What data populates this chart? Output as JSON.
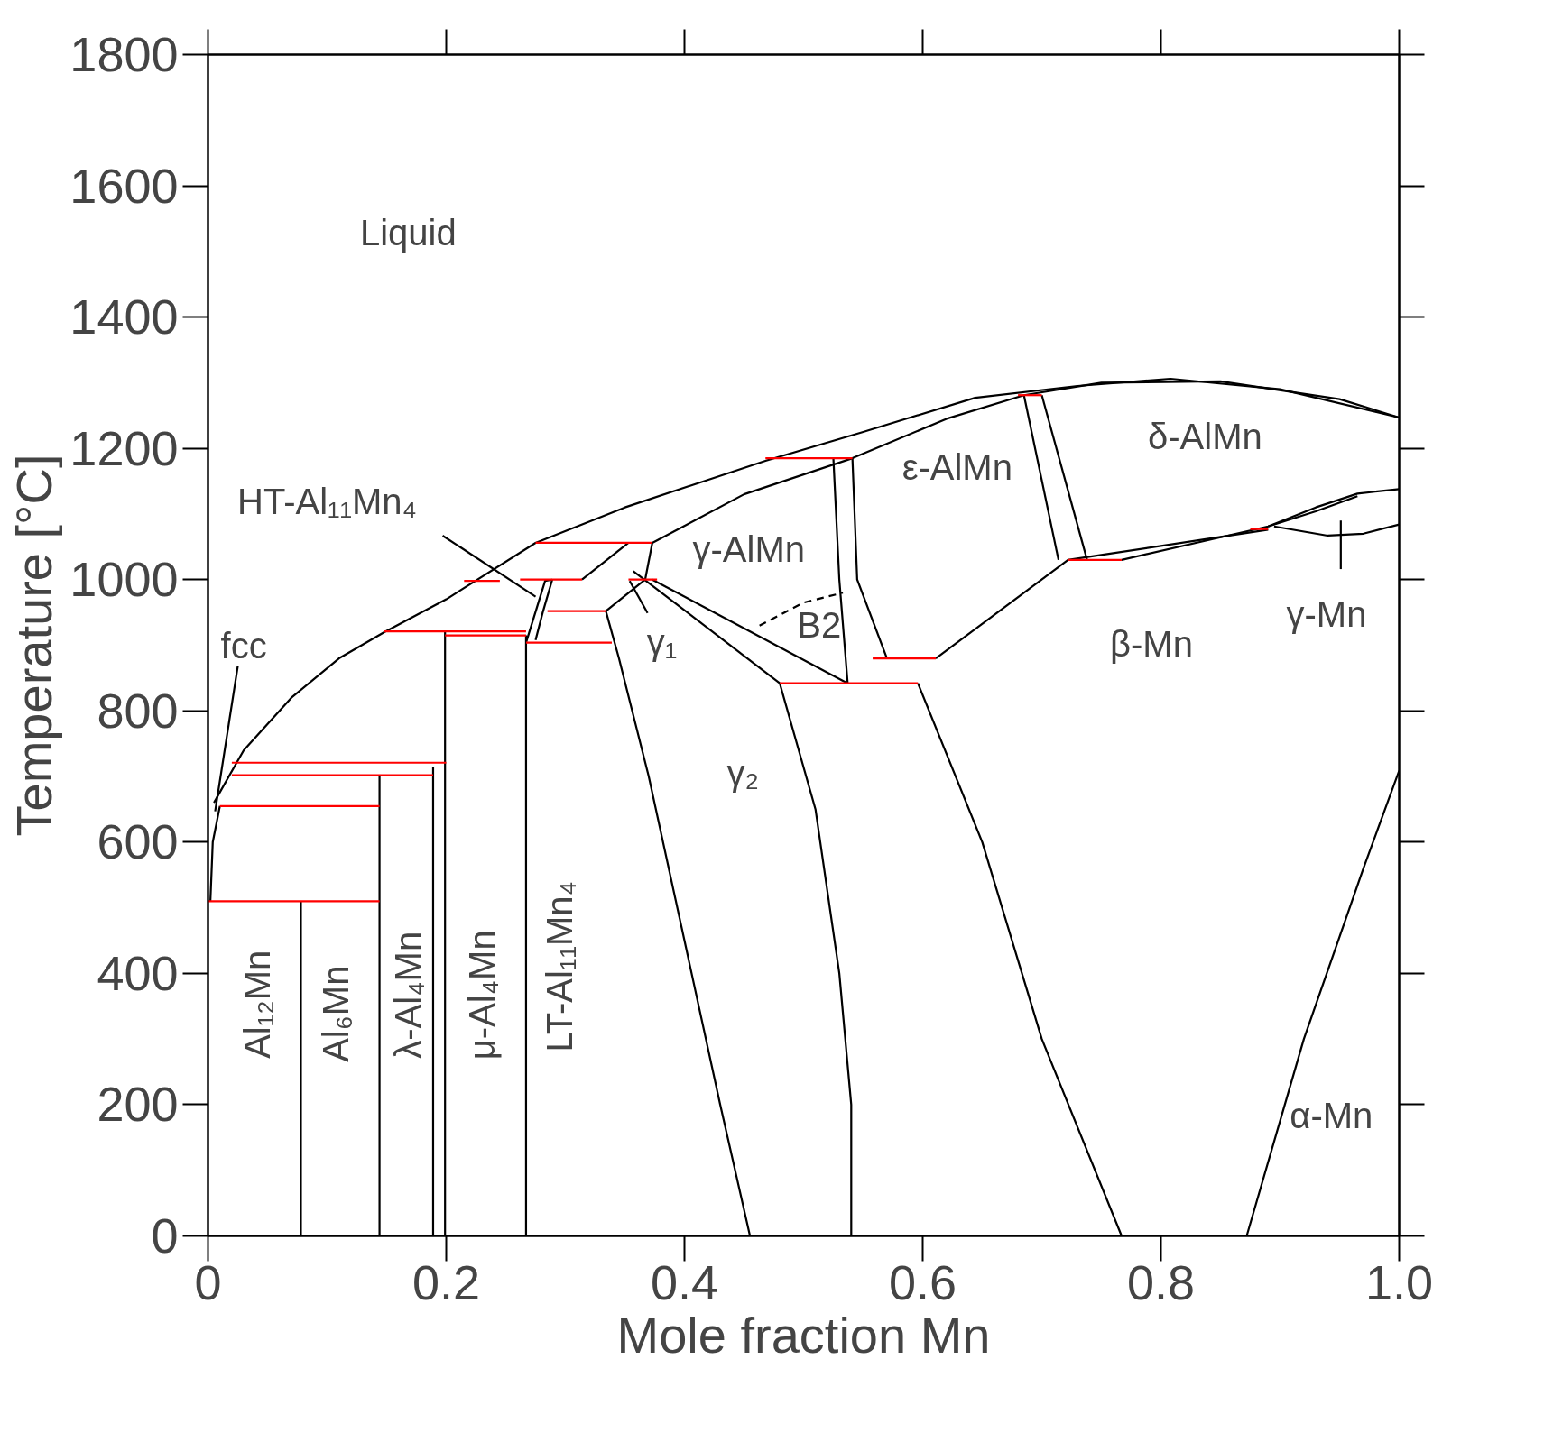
{
  "chart_data": {
    "type": "line",
    "xlabel": "Mole fraction Mn",
    "ylabel": "Temperature [°C]",
    "xlim": [
      0,
      1
    ],
    "ylim": [
      0,
      1800
    ],
    "xticks": [
      0,
      0.2,
      0.4,
      0.6,
      0.8,
      {
        "value": 1,
        "label": "1.0"
      }
    ],
    "yticks": [
      0,
      200,
      400,
      600,
      800,
      1000,
      1200,
      1400,
      1600,
      1800
    ],
    "grid": false,
    "series": [
      {
        "color": "#000000",
        "x": [
          0.005,
          0.03,
          0.07,
          0.11,
          0.148,
          0.2,
          0.275,
          0.35,
          0.468,
          0.55,
          0.644,
          0.73,
          0.808,
          0.9,
          1.0
        ],
        "values": [
          660,
          740,
          820,
          880,
          920,
          970,
          1056,
          1110,
          1181,
          1225,
          1277,
          1295,
          1306,
          1290,
          1247
        ]
      },
      {
        "color": "#000000",
        "x": [
          0.373,
          0.45,
          0.541,
          0.62,
          0.685,
          0.75,
          0.85,
          0.95,
          1.0
        ],
        "values": [
          1056,
          1130,
          1185,
          1245,
          1281,
          1300,
          1302,
          1275,
          1247
        ]
      },
      {
        "color": "#000000",
        "x": [
          0.078,
          0.078
        ],
        "values": [
          0,
          510
        ]
      },
      {
        "color": "#000000",
        "x": [
          0.144,
          0.144
        ],
        "values": [
          0,
          702
        ]
      },
      {
        "color": "#000000",
        "x": [
          0.189,
          0.189
        ],
        "values": [
          0,
          715
        ]
      },
      {
        "color": "#000000",
        "x": [
          0.199,
          0.199
        ],
        "values": [
          0,
          921
        ]
      },
      {
        "color": "#000000",
        "x": [
          0.267,
          0.267
        ],
        "values": [
          0,
          915
        ]
      },
      {
        "color": "#000000",
        "x": [
          0.002,
          0.004,
          0.01
        ],
        "values": [
          510,
          600,
          655
        ]
      },
      {
        "color": "#000000",
        "x": [
          0.267,
          0.283,
          0.289
        ],
        "values": [
          904,
          998,
          1000
        ]
      },
      {
        "color": "#000000",
        "x": [
          0.275,
          0.281,
          0.289
        ],
        "values": [
          908,
          950,
          1000
        ]
      },
      {
        "color": "#000000",
        "x": [
          0.334,
          0.345,
          0.37,
          0.4,
          0.43,
          0.455
        ],
        "values": [
          952,
          880,
          700,
          450,
          200,
          0
        ]
      },
      {
        "color": "#000000",
        "x": [
          0.314,
          0.353
        ],
        "values": [
          1000,
          1056
        ]
      },
      {
        "color": "#000000",
        "x": [
          0.334,
          0.367,
          0.373
        ],
        "values": [
          952,
          1000,
          1056
        ]
      },
      {
        "color": "#000000",
        "x": [
          0.373,
          0.537
        ],
        "values": [
          1000,
          842
        ]
      },
      {
        "color": "#000000",
        "x": [
          0.357,
          0.48
        ],
        "values": [
          1013,
          842
        ]
      },
      {
        "color": "#000000",
        "x": [
          0.48,
          0.51,
          0.53,
          0.54,
          0.54
        ],
        "values": [
          842,
          650,
          400,
          200,
          0
        ]
      },
      {
        "color": "#000000",
        "line_style": "dashed",
        "x": [
          0.463,
          0.5,
          0.533
        ],
        "values": [
          930,
          965,
          980
        ]
      },
      {
        "color": "#000000",
        "x": [
          0.525,
          0.53,
          0.537
        ],
        "values": [
          1185,
          1000,
          842
        ]
      },
      {
        "color": "#000000",
        "x": [
          0.541,
          0.545,
          0.57
        ],
        "values": [
          1185,
          1000,
          880
        ]
      },
      {
        "color": "#000000",
        "x": [
          0.611,
          0.722
        ],
        "values": [
          880,
          1030
        ]
      },
      {
        "color": "#000000",
        "x": [
          0.596,
          0.65,
          0.7,
          0.767
        ],
        "values": [
          842,
          600,
          300,
          0
        ]
      },
      {
        "color": "#000000",
        "x": [
          0.685,
          0.714
        ],
        "values": [
          1281,
          1030
        ]
      },
      {
        "color": "#000000",
        "x": [
          0.7,
          0.738
        ],
        "values": [
          1281,
          1030
        ]
      },
      {
        "color": "#000000",
        "x": [
          0.722,
          0.89
        ],
        "values": [
          1030,
          1076
        ]
      },
      {
        "color": "#000000",
        "x": [
          0.767,
          0.89,
          0.93,
          0.965,
          1.0
        ],
        "values": [
          1030,
          1081,
          1110,
          1131,
          1138
        ]
      },
      {
        "color": "#000000",
        "x": [
          0.89,
          0.93,
          0.965
        ],
        "values": [
          1081,
          1104,
          1127
        ]
      },
      {
        "color": "#000000",
        "x": [
          0.895,
          0.94,
          0.97,
          1.0
        ],
        "values": [
          1081,
          1067,
          1070,
          1084
        ]
      },
      {
        "color": "#000000",
        "x": [
          0.872,
          0.92,
          0.97,
          1.0
        ],
        "values": [
          0,
          300,
          560,
          709
        ]
      },
      {
        "color": "#000000",
        "x": [
          0.197,
          0.275
        ],
        "values": [
          1067,
          974
        ]
      },
      {
        "color": "#000000",
        "x": [
          0.025,
          0.006
        ],
        "values": [
          868,
          647
        ]
      },
      {
        "color": "#000000",
        "x": [
          0.369,
          0.354
        ],
        "values": [
          949,
          998
        ]
      },
      {
        "color": "#000000",
        "x": [
          0.951,
          0.951
        ],
        "values": [
          1016,
          1090
        ]
      },
      {
        "color": "#ff0000",
        "x": [
          0.468,
          0.541
        ],
        "values": [
          1185,
          1185
        ]
      },
      {
        "color": "#ff0000",
        "x": [
          0.68,
          0.7
        ],
        "values": [
          1281,
          1281
        ]
      },
      {
        "color": "#ff0000",
        "x": [
          0.275,
          0.373
        ],
        "values": [
          1056,
          1056
        ]
      },
      {
        "color": "#ff0000",
        "x": [
          0.215,
          0.245
        ],
        "values": [
          998,
          998
        ]
      },
      {
        "color": "#ff0000",
        "x": [
          0.262,
          0.314
        ],
        "values": [
          1000,
          1000
        ]
      },
      {
        "color": "#ff0000",
        "x": [
          0.353,
          0.377
        ],
        "values": [
          1000,
          1000
        ]
      },
      {
        "color": "#ff0000",
        "x": [
          0.285,
          0.334
        ],
        "values": [
          952,
          952
        ]
      },
      {
        "color": "#ff0000",
        "x": [
          0.148,
          0.267
        ],
        "values": [
          921,
          921
        ]
      },
      {
        "color": "#ff0000",
        "x": [
          0.199,
          0.267
        ],
        "values": [
          915,
          915
        ]
      },
      {
        "color": "#ff0000",
        "x": [
          0.267,
          0.339
        ],
        "values": [
          904,
          904
        ]
      },
      {
        "color": "#ff0000",
        "x": [
          0.48,
          0.596
        ],
        "values": [
          842,
          842
        ]
      },
      {
        "color": "#ff0000",
        "x": [
          0.558,
          0.611
        ],
        "values": [
          880,
          880
        ]
      },
      {
        "color": "#ff0000",
        "x": [
          0.722,
          0.767
        ],
        "values": [
          1030,
          1030
        ]
      },
      {
        "color": "#ff0000",
        "x": [
          0.875,
          0.89
        ],
        "values": [
          1077,
          1077
        ]
      },
      {
        "color": "#ff0000",
        "x": [
          0.02,
          0.2
        ],
        "values": [
          721,
          721
        ]
      },
      {
        "color": "#ff0000",
        "x": [
          0.02,
          0.189
        ],
        "values": [
          702,
          702
        ]
      },
      {
        "color": "#ff0000",
        "x": [
          0.01,
          0.144
        ],
        "values": [
          655,
          655
        ]
      },
      {
        "color": "#ff0000",
        "x": [
          0.0,
          0.144
        ],
        "values": [
          510,
          510
        ]
      }
    ],
    "annotations": [
      "Liquid",
      "HT-Al₁₁Mn₄",
      "fcc",
      "Al₁₂Mn",
      "Al₆Mn",
      "λ-Al₄Mn",
      "μ-Al₄Mn",
      "LT-Al₁₁Mn₄",
      "γ₁",
      "γ-AlMn",
      "B2",
      "ε-AlMn",
      "δ-AlMn",
      "β-Mn",
      "γ-Mn",
      "γ₂",
      "α-Mn"
    ]
  }
}
